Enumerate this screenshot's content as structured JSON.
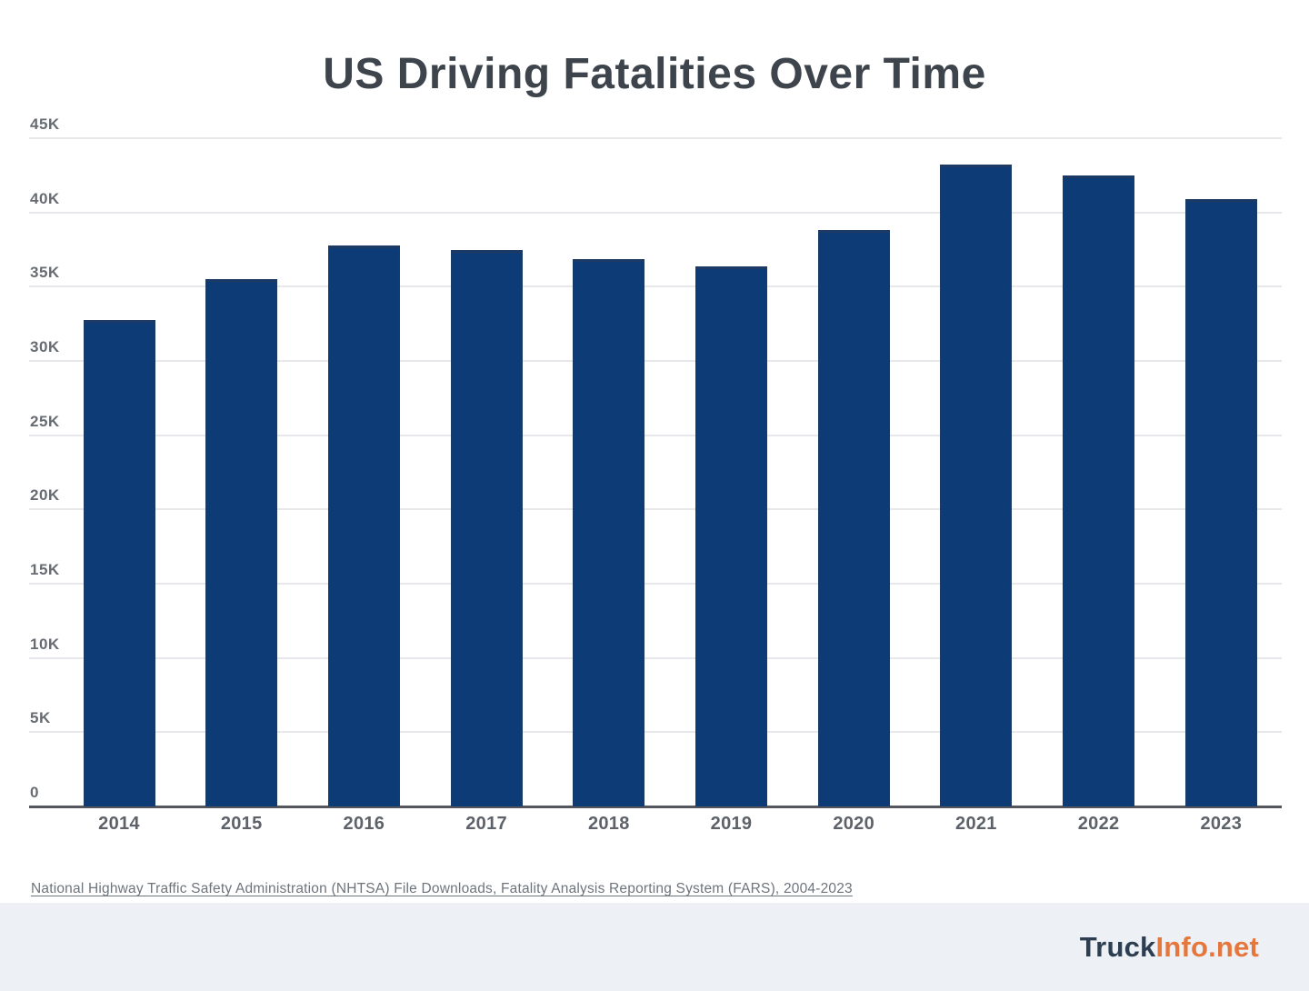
{
  "title": "US Driving Fatalities Over Time",
  "chart_data": {
    "type": "bar",
    "title": "US Driving Fatalities Over Time",
    "categories": [
      "2014",
      "2015",
      "2016",
      "2017",
      "2018",
      "2019",
      "2020",
      "2021",
      "2022",
      "2023"
    ],
    "values": [
      32744,
      35484,
      37806,
      37473,
      36835,
      36355,
      38824,
      43230,
      42514,
      40901
    ],
    "xlabel": "",
    "ylabel": "",
    "ylim": [
      0,
      45000
    ],
    "ytick_interval": 5000,
    "ytick_labels": [
      "0",
      "5K",
      "10K",
      "15K",
      "20K",
      "25K",
      "30K",
      "35K",
      "40K",
      "45K"
    ],
    "grid": true,
    "legend_position": "none",
    "bar_color": "#0d3b76"
  },
  "source_note": "National Highway Traffic Safety Administration (NHTSA) File Downloads, Fatality Analysis Reporting System (FARS), 2004-2023",
  "footer": {
    "brand_primary": "Truck",
    "brand_accent": "Info.net",
    "brand_primary_color": "#2e3e51",
    "brand_accent_color": "#e5773c",
    "background_color": "#edf1f6"
  },
  "colors": {
    "bar": "#0d3b76",
    "gridline": "#e6e8eb",
    "axis_line": "#53575d",
    "title_text": "#3d444b",
    "tick_label": "#676c73",
    "source_text": "#6e747c"
  }
}
